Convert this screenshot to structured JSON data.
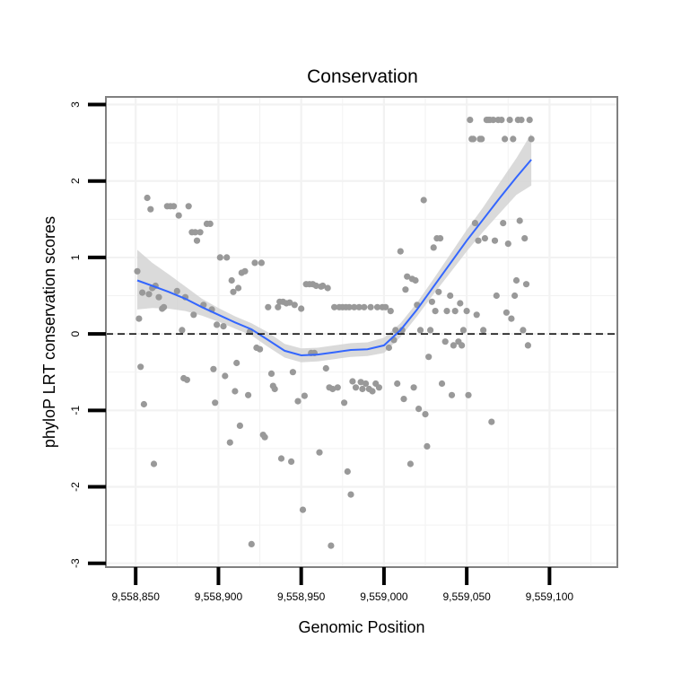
{
  "chart_data": {
    "type": "scatter",
    "title": "Conservation",
    "xlabel": "Genomic Position",
    "ylabel": "phyloP LRT conservation scores",
    "xlim": [
      9558832,
      9559141
    ],
    "ylim": [
      -3.05,
      3.1
    ],
    "xticks": [
      9558850,
      9558900,
      9558950,
      9559000,
      9559050,
      9559100
    ],
    "xtick_labels": [
      "9,558,850",
      "9,558,900",
      "9,558,950",
      "9,559,000",
      "9,559,050",
      "9,559,100"
    ],
    "yticks": [
      -3,
      -2,
      -1,
      0,
      1,
      2,
      3
    ],
    "ytick_labels": [
      "-3",
      "-2",
      "-1",
      "0",
      "1",
      "2",
      "3"
    ],
    "reference_line_y": 0,
    "grid": true,
    "colors": {
      "points": "#999999",
      "smooth_line": "#3366ff",
      "ribbon": "#d3d3d3",
      "panel_border": "#808080",
      "grid": "#f2f2f2"
    },
    "points": [
      [
        9558851,
        0.82
      ],
      [
        9558852,
        0.2
      ],
      [
        9558853,
        -0.43
      ],
      [
        9558854,
        0.54
      ],
      [
        9558855,
        -0.92
      ],
      [
        9558857,
        1.78
      ],
      [
        9558858,
        0.52
      ],
      [
        9558859,
        1.63
      ],
      [
        9558860,
        0.6
      ],
      [
        9558861,
        -1.7
      ],
      [
        9558862,
        0.63
      ],
      [
        9558864,
        0.48
      ],
      [
        9558866,
        0.33
      ],
      [
        9558867,
        0.35
      ],
      [
        9558869,
        1.67
      ],
      [
        9558871,
        1.67
      ],
      [
        9558873,
        1.67
      ],
      [
        9558875,
        0.56
      ],
      [
        9558876,
        1.55
      ],
      [
        9558878,
        0.05
      ],
      [
        9558879,
        -0.58
      ],
      [
        9558880,
        0.48
      ],
      [
        9558881,
        -0.6
      ],
      [
        9558882,
        1.67
      ],
      [
        9558884,
        1.33
      ],
      [
        9558885,
        0.25
      ],
      [
        9558886,
        1.33
      ],
      [
        9558887,
        1.22
      ],
      [
        9558889,
        1.33
      ],
      [
        9558891,
        0.38
      ],
      [
        9558893,
        1.44
      ],
      [
        9558895,
        1.44
      ],
      [
        9558896,
        0.32
      ],
      [
        9558897,
        -0.46
      ],
      [
        9558898,
        -0.9
      ],
      [
        9558899,
        0.12
      ],
      [
        9558901,
        1.0
      ],
      [
        9558903,
        0.1
      ],
      [
        9558904,
        -0.55
      ],
      [
        9558905,
        1.0
      ],
      [
        9558907,
        -1.42
      ],
      [
        9558908,
        0.7
      ],
      [
        9558909,
        0.55
      ],
      [
        9558910,
        -0.75
      ],
      [
        9558911,
        -0.38
      ],
      [
        9558912,
        0.6
      ],
      [
        9558913,
        -1.2
      ],
      [
        9558914,
        0.8
      ],
      [
        9558916,
        0.82
      ],
      [
        9558918,
        -0.8
      ],
      [
        9558919,
        0.03
      ],
      [
        9558920,
        -2.75
      ],
      [
        9558922,
        0.93
      ],
      [
        9558923,
        -0.18
      ],
      [
        9558925,
        -0.2
      ],
      [
        9558926,
        0.93
      ],
      [
        9558927,
        -1.32
      ],
      [
        9558928,
        -1.35
      ],
      [
        9558930,
        0.35
      ],
      [
        9558932,
        -0.52
      ],
      [
        9558933,
        -0.68
      ],
      [
        9558934,
        -0.72
      ],
      [
        9558936,
        0.35
      ],
      [
        9558937,
        0.42
      ],
      [
        9558938,
        -1.63
      ],
      [
        9558939,
        0.42
      ],
      [
        9558941,
        0.4
      ],
      [
        9558943,
        0.41
      ],
      [
        9558944,
        -1.67
      ],
      [
        9558945,
        -0.5
      ],
      [
        9558946,
        0.38
      ],
      [
        9558948,
        -0.88
      ],
      [
        9558950,
        0.33
      ],
      [
        9558951,
        -2.3
      ],
      [
        9558952,
        -0.81
      ],
      [
        9558953,
        0.65
      ],
      [
        9558955,
        0.65
      ],
      [
        9558956,
        -0.25
      ],
      [
        9558957,
        0.65
      ],
      [
        9558958,
        -0.25
      ],
      [
        9558959,
        0.63
      ],
      [
        9558961,
        -1.55
      ],
      [
        9558962,
        0.62
      ],
      [
        9558963,
        0.63
      ],
      [
        9558965,
        -0.45
      ],
      [
        9558966,
        0.6
      ],
      [
        9558967,
        -0.7
      ],
      [
        9558968,
        -2.77
      ],
      [
        9558969,
        -0.72
      ],
      [
        9558970,
        0.35
      ],
      [
        9558972,
        -0.7
      ],
      [
        9558973,
        0.35
      ],
      [
        9558975,
        0.35
      ],
      [
        9558976,
        -0.9
      ],
      [
        9558977,
        0.35
      ],
      [
        9558978,
        -1.8
      ],
      [
        9558979,
        0.35
      ],
      [
        9558980,
        -2.1
      ],
      [
        9558981,
        -0.62
      ],
      [
        9558982,
        0.35
      ],
      [
        9558983,
        -0.7
      ],
      [
        9558985,
        0.35
      ],
      [
        9558986,
        -0.63
      ],
      [
        9558987,
        -0.72
      ],
      [
        9558988,
        0.35
      ],
      [
        9558989,
        -0.65
      ],
      [
        9558991,
        -0.72
      ],
      [
        9558992,
        0.35
      ],
      [
        9558993,
        -0.75
      ],
      [
        9558995,
        -0.65
      ],
      [
        9558996,
        0.35
      ],
      [
        9558997,
        -0.7
      ],
      [
        9558999,
        0.35
      ],
      [
        9559001,
        0.35
      ],
      [
        9559003,
        -0.18
      ],
      [
        9559004,
        0.3
      ],
      [
        9559006,
        -0.08
      ],
      [
        9559007,
        0.05
      ],
      [
        9559008,
        -0.65
      ],
      [
        9559010,
        1.08
      ],
      [
        9559011,
        0.05
      ],
      [
        9559012,
        -0.85
      ],
      [
        9559013,
        0.58
      ],
      [
        9559014,
        0.75
      ],
      [
        9559016,
        -1.7
      ],
      [
        9559017,
        0.72
      ],
      [
        9559018,
        -0.7
      ],
      [
        9559019,
        0.7
      ],
      [
        9559020,
        0.38
      ],
      [
        9559021,
        -0.98
      ],
      [
        9559022,
        0.05
      ],
      [
        9559024,
        1.75
      ],
      [
        9559025,
        -1.05
      ],
      [
        9559026,
        -1.47
      ],
      [
        9559027,
        -0.3
      ],
      [
        9559028,
        0.05
      ],
      [
        9559029,
        0.42
      ],
      [
        9559030,
        1.13
      ],
      [
        9559031,
        0.3
      ],
      [
        9559032,
        1.25
      ],
      [
        9559033,
        0.55
      ],
      [
        9559034,
        1.25
      ],
      [
        9559035,
        -0.65
      ],
      [
        9559037,
        -0.1
      ],
      [
        9559038,
        0.3
      ],
      [
        9559040,
        0.5
      ],
      [
        9559041,
        -0.8
      ],
      [
        9559042,
        -0.15
      ],
      [
        9559043,
        0.3
      ],
      [
        9559045,
        -0.1
      ],
      [
        9559046,
        0.4
      ],
      [
        9559047,
        -0.15
      ],
      [
        9559048,
        0.05
      ],
      [
        9559050,
        0.3
      ],
      [
        9559051,
        -0.8
      ],
      [
        9559052,
        2.8
      ],
      [
        9559053,
        2.55
      ],
      [
        9559054,
        2.55
      ],
      [
        9559055,
        1.45
      ],
      [
        9559056,
        0.25
      ],
      [
        9559057,
        1.22
      ],
      [
        9559058,
        2.55
      ],
      [
        9559059,
        2.55
      ],
      [
        9559060,
        0.05
      ],
      [
        9559061,
        1.25
      ],
      [
        9559062,
        2.8
      ],
      [
        9559063,
        2.8
      ],
      [
        9559064,
        2.8
      ],
      [
        9559065,
        -1.15
      ],
      [
        9559066,
        2.8
      ],
      [
        9559067,
        1.22
      ],
      [
        9559068,
        0.5
      ],
      [
        9559069,
        2.8
      ],
      [
        9559071,
        2.8
      ],
      [
        9559072,
        1.45
      ],
      [
        9559073,
        2.55
      ],
      [
        9559074,
        0.28
      ],
      [
        9559075,
        1.18
      ],
      [
        9559076,
        2.8
      ],
      [
        9559077,
        0.2
      ],
      [
        9559078,
        2.55
      ],
      [
        9559079,
        0.5
      ],
      [
        9559080,
        0.7
      ],
      [
        9559081,
        2.8
      ],
      [
        9559082,
        1.48
      ],
      [
        9559083,
        2.8
      ],
      [
        9559084,
        0.05
      ],
      [
        9559085,
        1.25
      ],
      [
        9559086,
        0.65
      ],
      [
        9559087,
        -0.15
      ],
      [
        9559088,
        2.8
      ],
      [
        9559089,
        2.55
      ]
    ],
    "smooth": {
      "x": [
        9558851,
        9558860,
        9558870,
        9558880,
        9558890,
        9558900,
        9558910,
        9558920,
        9558930,
        9558940,
        9558950,
        9558960,
        9558970,
        9558980,
        9558990,
        9559000,
        9559010,
        9559020,
        9559030,
        9559040,
        9559050,
        9559060,
        9559070,
        9559080,
        9559089
      ],
      "y": [
        0.7,
        0.63,
        0.55,
        0.46,
        0.35,
        0.25,
        0.15,
        0.06,
        -0.08,
        -0.22,
        -0.28,
        -0.27,
        -0.24,
        -0.21,
        -0.2,
        -0.15,
        0.05,
        0.32,
        0.62,
        0.92,
        1.22,
        1.5,
        1.78,
        2.05,
        2.28
      ],
      "lower": [
        0.32,
        0.34,
        0.33,
        0.3,
        0.24,
        0.16,
        0.07,
        -0.02,
        -0.17,
        -0.31,
        -0.37,
        -0.36,
        -0.33,
        -0.3,
        -0.29,
        -0.25,
        -0.04,
        0.23,
        0.52,
        0.8,
        1.08,
        1.34,
        1.58,
        1.82,
        1.94
      ],
      "upper": [
        1.1,
        0.93,
        0.78,
        0.62,
        0.46,
        0.34,
        0.23,
        0.14,
        0.02,
        -0.13,
        -0.19,
        -0.18,
        -0.15,
        -0.12,
        -0.11,
        -0.05,
        0.14,
        0.41,
        0.72,
        1.04,
        1.36,
        1.66,
        1.98,
        2.3,
        2.62
      ]
    }
  }
}
